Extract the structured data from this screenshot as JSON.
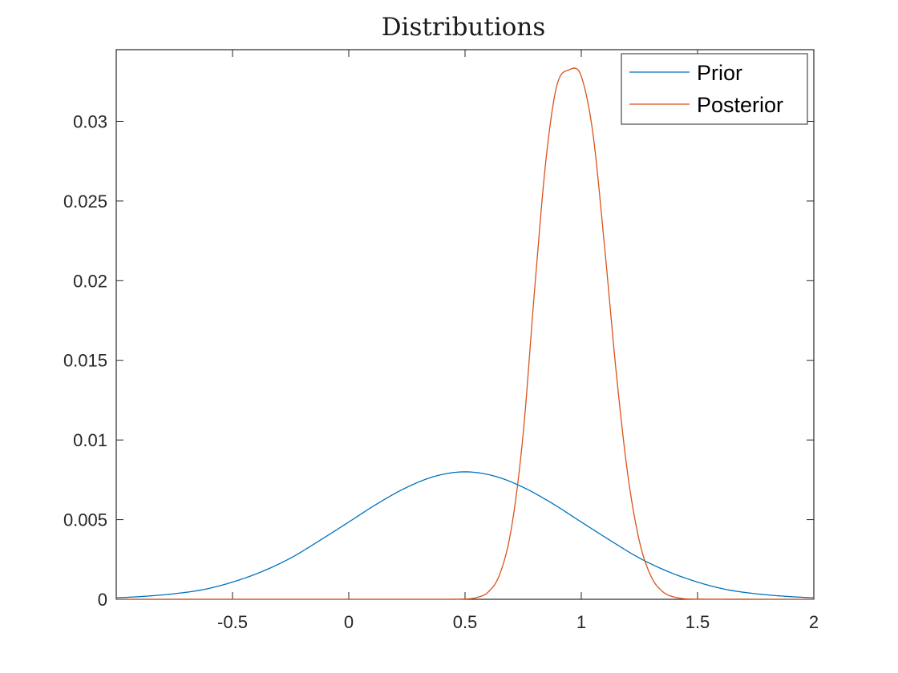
{
  "chart_data": {
    "type": "line",
    "title": "Distributions",
    "xlabel": "",
    "ylabel": "",
    "xlim": [
      -1,
      2
    ],
    "ylim": [
      0,
      0.0345
    ],
    "x_ticks": [
      -0.5,
      0,
      0.5,
      1,
      1.5,
      2
    ],
    "x_tick_labels": [
      "-0.5",
      "0",
      "0.5",
      "1",
      "1.5",
      "2"
    ],
    "y_ticks": [
      0,
      0.005,
      0.01,
      0.015,
      0.02,
      0.025,
      0.03
    ],
    "y_tick_labels": [
      "0",
      "0.005",
      "0.01",
      "0.015",
      "0.02",
      "0.025",
      "0.03"
    ],
    "grid": false,
    "legend_position": "top-right",
    "series": [
      {
        "name": "Prior",
        "color": "#0072BD",
        "x": [
          -1,
          -0.875,
          -0.75,
          -0.625,
          -0.5,
          -0.375,
          -0.25,
          -0.125,
          0,
          0.125,
          0.25,
          0.375,
          0.5,
          0.625,
          0.75,
          0.875,
          1,
          1.125,
          1.25,
          1.375,
          1.5,
          1.625,
          1.75,
          1.875,
          2
        ],
        "y": [
          9e-05,
          0.00019,
          0.00035,
          0.00061,
          0.00108,
          0.00173,
          0.00259,
          0.00369,
          0.00485,
          0.00602,
          0.00703,
          0.00774,
          0.008,
          0.00774,
          0.00703,
          0.00602,
          0.00485,
          0.00369,
          0.00259,
          0.00173,
          0.00108,
          0.00061,
          0.00035,
          0.00019,
          9e-05
        ]
      },
      {
        "name": "Posterior",
        "color": "#D95319",
        "x": [
          -1,
          0.4,
          0.5,
          0.55,
          0.6,
          0.65,
          0.7,
          0.75,
          0.8,
          0.85,
          0.9,
          0.95,
          0.97,
          1,
          1.05,
          1.1,
          1.15,
          1.2,
          1.25,
          1.3,
          1.35,
          1.4,
          1.5,
          2
        ],
        "y": [
          0,
          0,
          2e-05,
          0.00011,
          0.00046,
          0.0016,
          0.00451,
          0.01039,
          0.01957,
          0.02785,
          0.03251,
          0.03325,
          0.03334,
          0.03283,
          0.02924,
          0.02215,
          0.01428,
          0.00782,
          0.00364,
          0.00144,
          0.00048,
          0.00014,
          1e-05,
          0
        ]
      }
    ]
  }
}
